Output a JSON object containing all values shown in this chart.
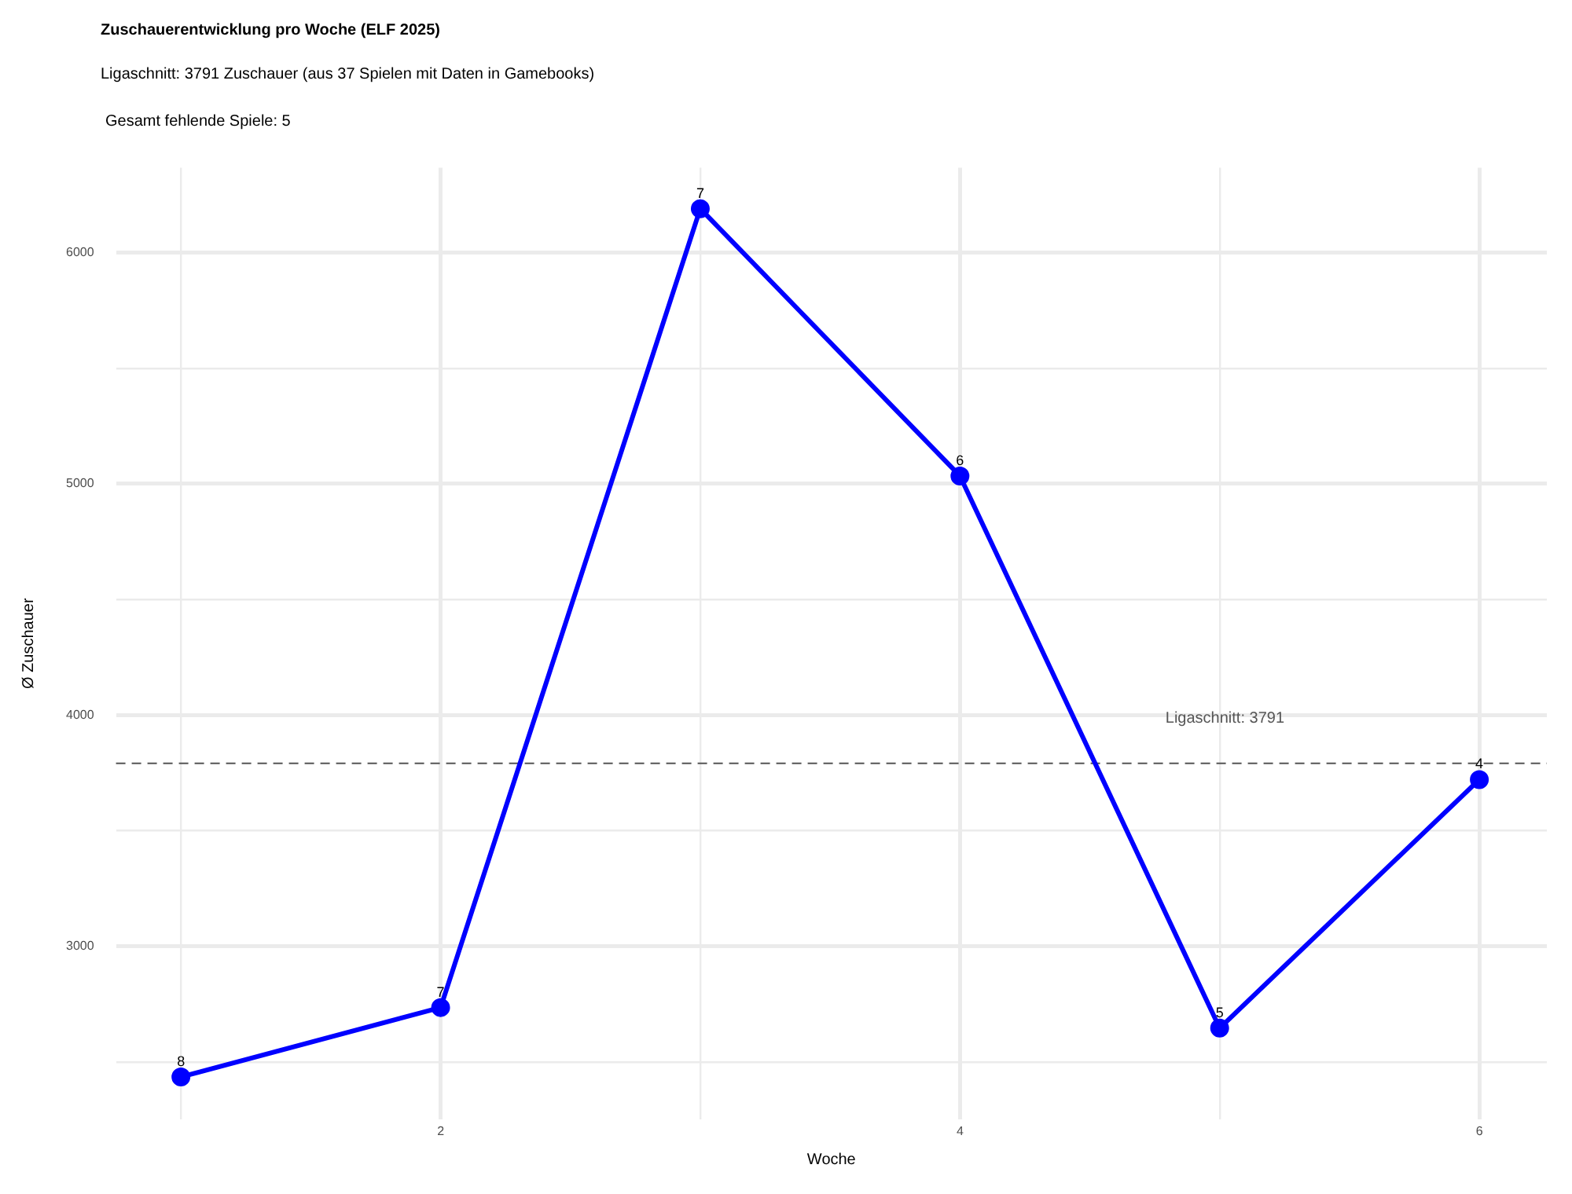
{
  "chart_data": {
    "type": "line",
    "title": "Zuschauerentwicklung pro Woche (ELF 2025)",
    "subtitle": "Ligaschnitt: 3791 Zuschauer (aus 37 Spielen mit Daten in Gamebooks)",
    "annotations": [
      "Gesamt fehlende Spiele: 5",
      {
        "text": "8",
        "x": 1,
        "y": 2435
      },
      {
        "text": "7",
        "x": 2,
        "y": 2735
      },
      {
        "text": "7",
        "x": 3,
        "y": 6190
      },
      {
        "text": "6",
        "x": 4,
        "y": 5034
      },
      {
        "text": "5",
        "x": 5,
        "y": 2646
      },
      {
        "text": "4",
        "x": 6,
        "y": 3721
      }
    ],
    "xlabel": "Woche",
    "ylabel": "Ø Zuschauer",
    "x": [
      1,
      2,
      3,
      4,
      5,
      6
    ],
    "series": [
      {
        "color": "#0000ff",
        "values": [
          2435,
          2735,
          6190,
          5034,
          2646,
          3721
        ]
      }
    ],
    "marker": "circle",
    "grid": true,
    "xlim": [
      0.75,
      6.26
    ],
    "xticks": [
      {
        "value": 1,
        "label": null
      },
      2,
      {
        "value": 3,
        "label": null
      },
      4,
      {
        "value": 5,
        "label": null
      },
      6
    ],
    "ylim": [
      2252,
      6367
    ],
    "yticks": [
      {
        "value": 2500,
        "label": null
      },
      3000,
      {
        "value": 3500,
        "label": null
      },
      4000,
      {
        "value": 4500,
        "label": null
      },
      5000,
      {
        "value": 5500,
        "label": null
      },
      6000
    ],
    "ref_lines": [
      {
        "axis": "y",
        "value": 3791,
        "label": "Ligaschnitt: 3791",
        "color": "#555555",
        "line_style": "dashed"
      }
    ]
  }
}
